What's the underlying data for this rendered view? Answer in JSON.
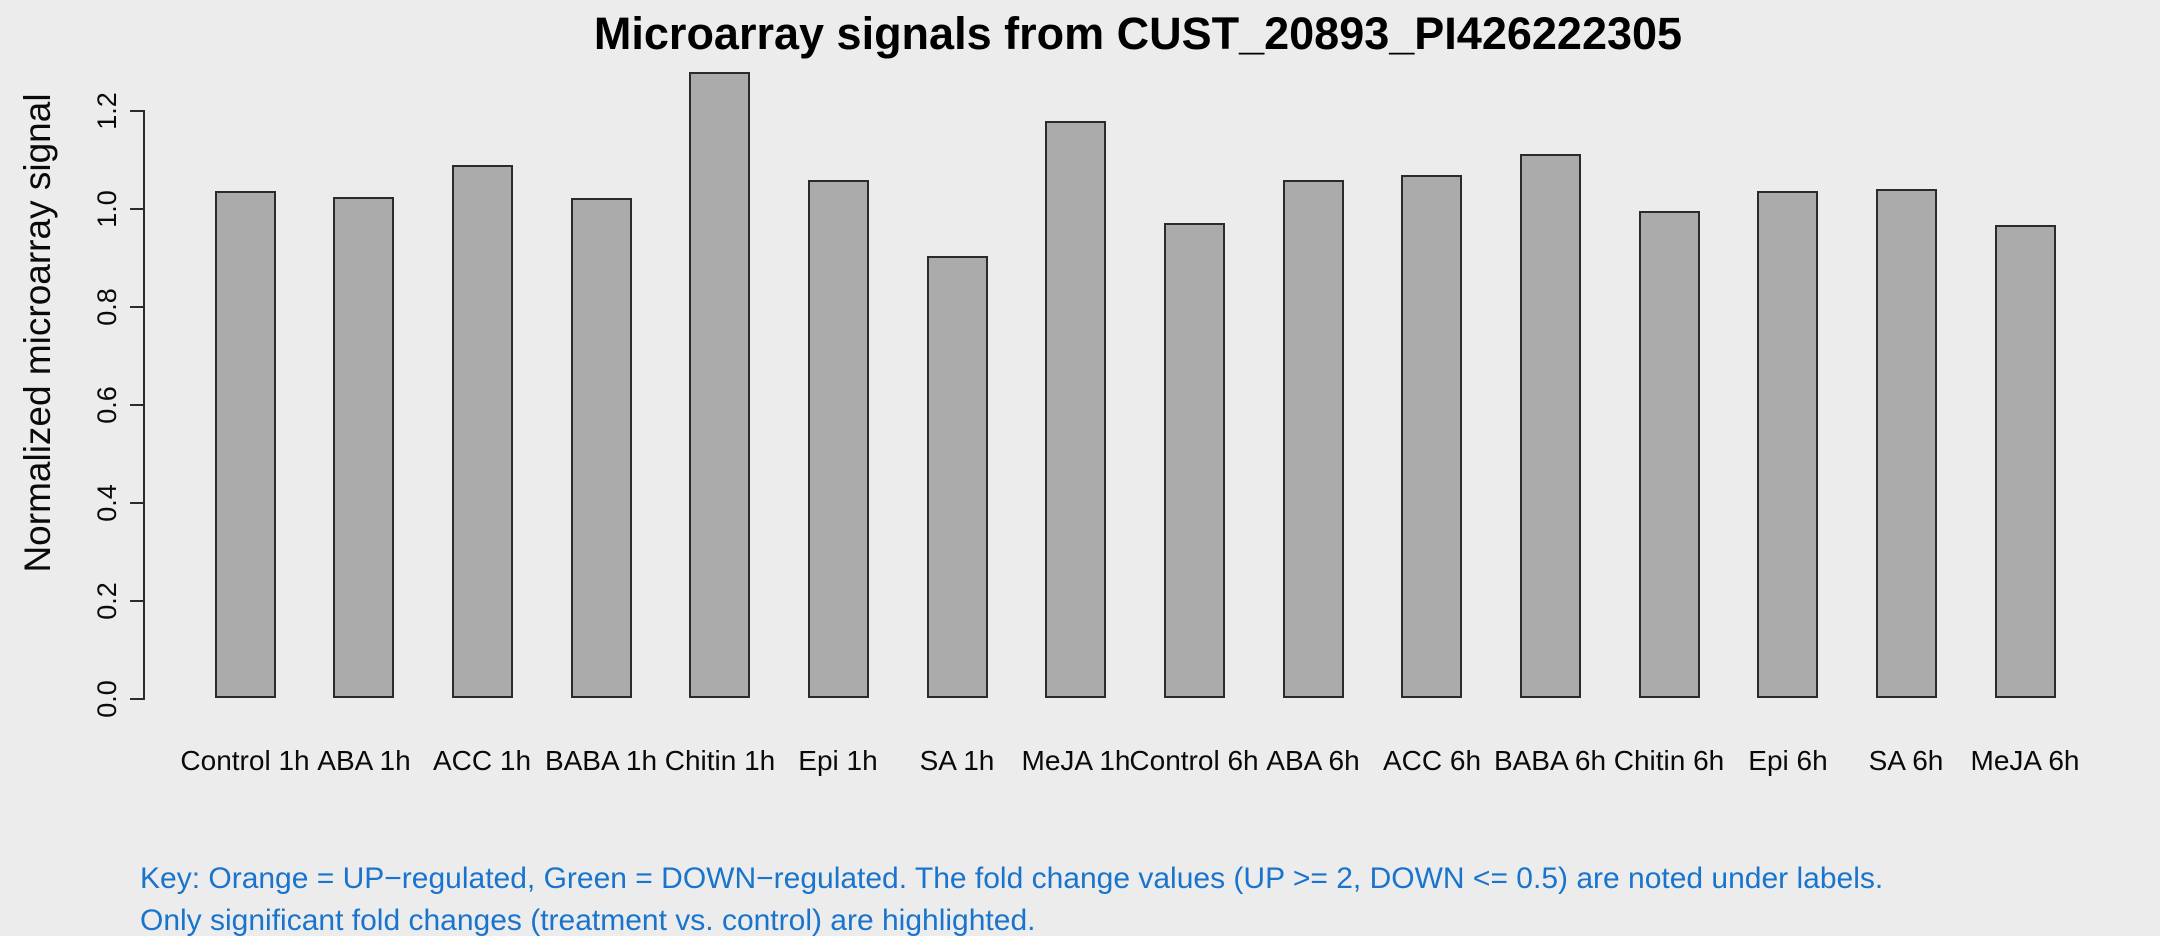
{
  "background": "#ECECEC",
  "chart_data": {
    "type": "bar",
    "title": "Microarray signals from CUST_20893_PI426222305",
    "xlabel": "",
    "ylabel": "Normalized microarray signal",
    "categories": [
      "Control 1h",
      "ABA 1h",
      "ACC 1h",
      "BABA 1h",
      "Chitin 1h",
      "Epi 1h",
      "SA 1h",
      "MeJA 1h",
      "Control 6h",
      "ABA 6h",
      "ACC 6h",
      "BABA 6h",
      "Chitin 6h",
      "Epi 6h",
      "SA 6h",
      "MeJA 6h"
    ],
    "values": [
      1.034,
      1.022,
      1.088,
      1.02,
      1.278,
      1.057,
      0.902,
      1.178,
      0.969,
      1.057,
      1.067,
      1.11,
      0.994,
      1.034,
      1.039,
      0.966
    ],
    "ylim": [
      0,
      1.2
    ],
    "yticks": [
      "0.0",
      "0.2",
      "0.4",
      "0.6",
      "0.8",
      "1.0",
      "1.2"
    ],
    "grid": "off",
    "legend": "none",
    "bar_fill": "#ABABAB",
    "bar_border": "#2B2B2B",
    "axis_color": "#2B2B2B"
  },
  "notes": {
    "line1": "Key: Orange = UP−regulated, Green = DOWN−regulated. The fold change values (UP >= 2, DOWN <= 0.5) are noted under labels.",
    "line2": "Only significant fold changes (treatment vs. control) are highlighted.",
    "color": "#1874CD"
  }
}
